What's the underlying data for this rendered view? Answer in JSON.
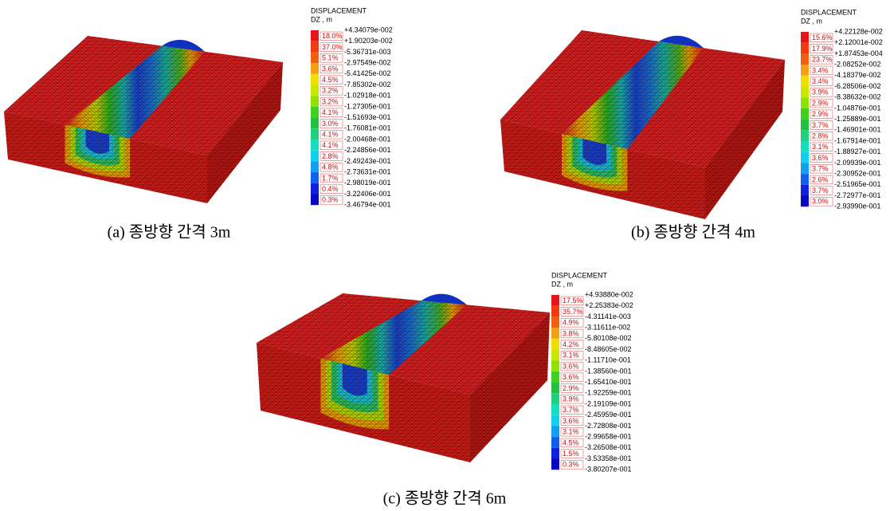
{
  "figures": [
    {
      "legend": {
        "title": "DISPLACEMENT",
        "unit": "DZ , m",
        "percents": [
          "18.0%",
          "37.0%",
          "5.1%",
          "3.6%",
          "4.5%",
          "3.2%",
          "3.2%",
          "4.1%",
          "3.0%",
          "4.1%",
          "4.1%",
          "2.8%",
          "4.8%",
          "1.7%",
          "0.4%",
          "0.3%"
        ],
        "values": [
          "+4.34079e-002",
          "+1.90203e-002",
          "-5.36731e-003",
          "-2.97549e-002",
          "-5.41425e-002",
          "-7.85302e-002",
          "-1.02918e-001",
          "-1.27305e-001",
          "-1.51693e-001",
          "-1.76081e-001",
          "-2.00468e-001",
          "-2.24856e-001",
          "-2.49243e-001",
          "-2.73631e-001",
          "-2.98019e-001",
          "-3.22406e-001",
          "-3.46794e-001"
        ]
      },
      "caption": "(a) 종방향 간격 3m"
    },
    {
      "legend": {
        "title": "DISPLACEMENT",
        "unit": "DZ , m",
        "percents": [
          "15.6%",
          "17.9%",
          "23.7%",
          "3.4%",
          "3.4%",
          "3.9%",
          "2.9%",
          "2.9%",
          "3.7%",
          "2.8%",
          "3.1%",
          "3.6%",
          "3.7%",
          "2.6%",
          "3.7%",
          "3.0%"
        ],
        "values": [
          "+4.22128e-002",
          "+2.12001e-002",
          "+1.87453e-004",
          "-2.08252e-002",
          "-4.18379e-002",
          "-6.28506e-002",
          "-8.38632e-002",
          "-1.04876e-001",
          "-1.25889e-001",
          "-1.46901e-001",
          "-1.67914e-001",
          "-1.88927e-001",
          "-2.09939e-001",
          "-2.30952e-001",
          "-2.51965e-001",
          "-2.72977e-001",
          "-2.93990e-001"
        ]
      },
      "caption": "(b) 종방향 간격 4m"
    },
    {
      "legend": {
        "title": "DISPLACEMENT",
        "unit": "DZ , m",
        "percents": [
          "17.5%",
          "35.7%",
          "4.9%",
          "3.8%",
          "4.2%",
          "3.1%",
          "3.6%",
          "3.6%",
          "2.9%",
          "3.9%",
          "3.7%",
          "3.6%",
          "3.1%",
          "4.5%",
          "1.5%",
          "0.3%"
        ],
        "values": [
          "+4.93880e-002",
          "+2.25383e-002",
          "-4.31141e-003",
          "-3.11611e-002",
          "-5.80108e-002",
          "-8.48605e-002",
          "-1.11710e-001",
          "-1.38560e-001",
          "-1.65410e-001",
          "-1.92259e-001",
          "-2.19109e-001",
          "-2.45959e-001",
          "-2.72808e-001",
          "-2.99658e-001",
          "-3.26508e-001",
          "-3.53358e-001",
          "-3.80207e-001"
        ]
      },
      "caption": "(c) 종방향 간격 6m"
    }
  ]
}
